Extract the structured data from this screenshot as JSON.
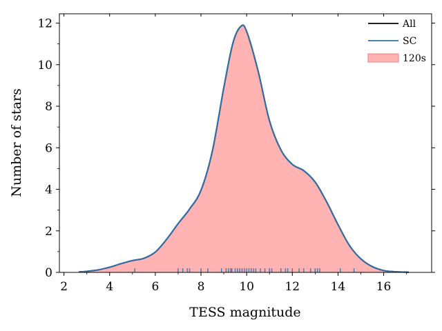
{
  "chart_data": {
    "type": "area",
    "xlabel": "TESS magnitude",
    "ylabel": "Number of stars",
    "xlim": [
      1.8,
      18.1
    ],
    "ylim": [
      0,
      12.45
    ],
    "x_ticks": [
      "2",
      "4",
      "6",
      "8",
      "10",
      "12",
      "14",
      "16"
    ],
    "x_tick_values": [
      2,
      4,
      6,
      8,
      10,
      12,
      14,
      16
    ],
    "y_ticks": [
      "0",
      "2",
      "4",
      "6",
      "8",
      "10",
      "12"
    ],
    "y_tick_values": [
      0,
      2,
      4,
      6,
      8,
      10,
      12
    ],
    "grid": false,
    "legend_position": "top-right",
    "series": [
      {
        "name": "All",
        "type": "line",
        "color": "#000000",
        "x": [
          2.65,
          3.0,
          3.5,
          4.0,
          4.5,
          5.0,
          5.5,
          6.0,
          6.5,
          7.0,
          7.5,
          8.0,
          8.5,
          9.0,
          9.4,
          9.75,
          10.0,
          10.5,
          11.0,
          11.5,
          12.0,
          12.5,
          13.0,
          13.5,
          14.0,
          14.5,
          15.0,
          15.5,
          16.0,
          16.5,
          17.1
        ],
        "y": [
          0.02,
          0.05,
          0.12,
          0.25,
          0.42,
          0.57,
          0.68,
          0.98,
          1.6,
          2.35,
          3.05,
          3.95,
          5.85,
          8.9,
          11.05,
          11.85,
          11.6,
          9.7,
          7.3,
          5.9,
          5.2,
          4.9,
          4.35,
          3.4,
          2.3,
          1.3,
          0.65,
          0.28,
          0.09,
          0.03,
          0.01
        ]
      },
      {
        "name": "SC",
        "type": "line",
        "color": "#2f6fa8",
        "x": [
          2.65,
          3.0,
          3.5,
          4.0,
          4.5,
          5.0,
          5.5,
          6.0,
          6.5,
          7.0,
          7.5,
          8.0,
          8.5,
          9.0,
          9.4,
          9.75,
          10.0,
          10.5,
          11.0,
          11.5,
          12.0,
          12.5,
          13.0,
          13.5,
          14.0,
          14.5,
          15.0,
          15.5,
          16.0,
          16.5,
          17.1
        ],
        "y": [
          0.02,
          0.05,
          0.12,
          0.25,
          0.42,
          0.57,
          0.68,
          0.98,
          1.6,
          2.35,
          3.05,
          3.95,
          5.85,
          8.9,
          11.05,
          11.85,
          11.6,
          9.7,
          7.3,
          5.9,
          5.2,
          4.9,
          4.35,
          3.4,
          2.3,
          1.3,
          0.65,
          0.28,
          0.09,
          0.03,
          0.01
        ]
      },
      {
        "name": "120s",
        "type": "area",
        "color": "#ffb3b3",
        "edge_color": "#f08080",
        "x": [
          2.65,
          3.0,
          3.5,
          4.0,
          4.5,
          5.0,
          5.5,
          6.0,
          6.5,
          7.0,
          7.5,
          8.0,
          8.5,
          9.0,
          9.4,
          9.75,
          10.0,
          10.5,
          11.0,
          11.5,
          12.0,
          12.5,
          13.0,
          13.5,
          14.0,
          14.5,
          15.0,
          15.5,
          16.0,
          16.5,
          17.1
        ],
        "y": [
          0.02,
          0.05,
          0.12,
          0.25,
          0.42,
          0.57,
          0.68,
          0.98,
          1.6,
          2.35,
          3.05,
          3.95,
          5.85,
          8.9,
          11.05,
          11.85,
          11.6,
          9.7,
          7.3,
          5.9,
          5.2,
          4.9,
          4.35,
          3.4,
          2.3,
          1.3,
          0.65,
          0.28,
          0.09,
          0.03,
          0.01
        ]
      }
    ],
    "rug": {
      "color": "#4a7fb0",
      "values": [
        5.1,
        7.0,
        7.2,
        7.4,
        7.5,
        8.0,
        8.3,
        8.9,
        9.1,
        9.2,
        9.3,
        9.35,
        9.5,
        9.6,
        9.7,
        9.8,
        9.9,
        10.0,
        10.1,
        10.2,
        10.3,
        10.4,
        10.6,
        10.8,
        11.0,
        11.1,
        11.5,
        11.7,
        11.8,
        12.0,
        12.3,
        12.5,
        12.8,
        13.0,
        13.1,
        13.2,
        14.1,
        14.7
      ]
    }
  }
}
